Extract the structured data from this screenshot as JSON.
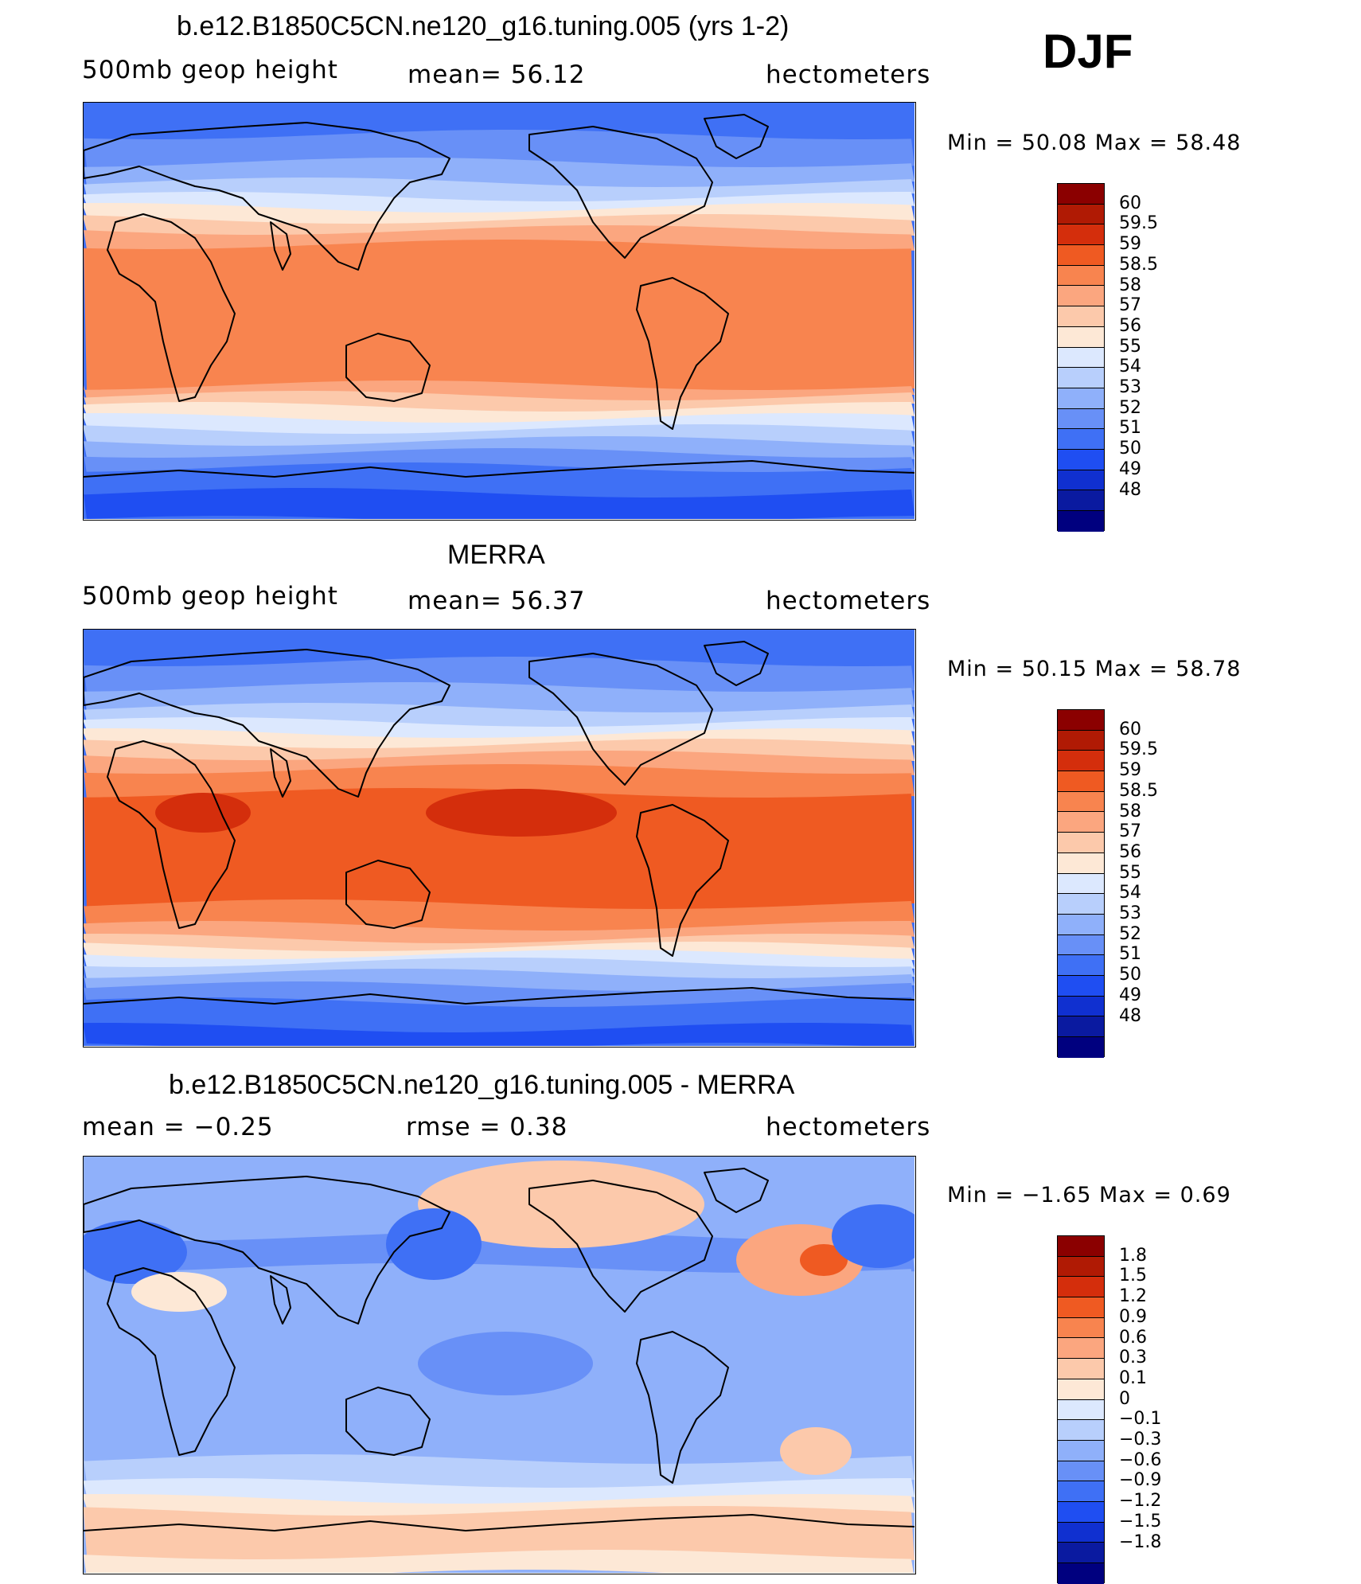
{
  "season": "DJF",
  "colors": {
    "abs": [
      "#00007f",
      "#0a1aa0",
      "#1030d0",
      "#1f4ef2",
      "#3f70f5",
      "#6890f7",
      "#8fb0fa",
      "#b8cffc",
      "#dce8fe",
      "#fde8d6",
      "#fcc9ab",
      "#fba67f",
      "#f8844f",
      "#ef5a22",
      "#d42e0c",
      "#b01a04",
      "#8b0000"
    ],
    "diff": [
      "#00007f",
      "#0a1aa0",
      "#1030d0",
      "#1f4ef2",
      "#3f70f5",
      "#6890f7",
      "#8fb0fa",
      "#b8cffc",
      "#dce8fe",
      "#fde8d6",
      "#fcc9ab",
      "#fba67f",
      "#f8844f",
      "#ef5a22",
      "#d42e0c",
      "#b01a04",
      "#8b0000"
    ],
    "coast": "#000000"
  },
  "panels": [
    {
      "title": "b.e12.B1850C5CN.ne120_g16.tuning.005 (yrs 1-2)",
      "left_label": "500mb  geop  height",
      "center_label": "mean=   56.12",
      "right_label": "hectometers",
      "minmax": "Min  =    50.08  Max  =    58.48",
      "legend": [
        "60",
        "59.5",
        "59",
        "58.5",
        "58",
        "57",
        "56",
        "55",
        "54",
        "53",
        "52",
        "51",
        "50",
        "49",
        "48"
      ],
      "kind": "abs"
    },
    {
      "title": "MERRA",
      "left_label": "500mb  geop  height",
      "center_label": "mean=   56.37",
      "right_label": "hectometers",
      "minmax": "Min  =    50.15  Max  =    58.78",
      "legend": [
        "60",
        "59.5",
        "59",
        "58.5",
        "58",
        "57",
        "56",
        "55",
        "54",
        "53",
        "52",
        "51",
        "50",
        "49",
        "48"
      ],
      "kind": "abs"
    },
    {
      "title": "b.e12.B1850C5CN.ne120_g16.tuning.005 - MERRA",
      "left_label": "mean  =    −0.25",
      "center_label": "rmse  =     0.38",
      "right_label": "hectometers",
      "minmax": "Min  =    −1.65  Max  =      0.69",
      "legend": [
        "1.8",
        "1.5",
        "1.2",
        "0.9",
        "0.6",
        "0.3",
        "0.1",
        "0",
        "−0.1",
        "−0.3",
        "−0.6",
        "−0.9",
        "−1.2",
        "−1.5",
        "−1.8"
      ],
      "kind": "diff"
    }
  ]
}
